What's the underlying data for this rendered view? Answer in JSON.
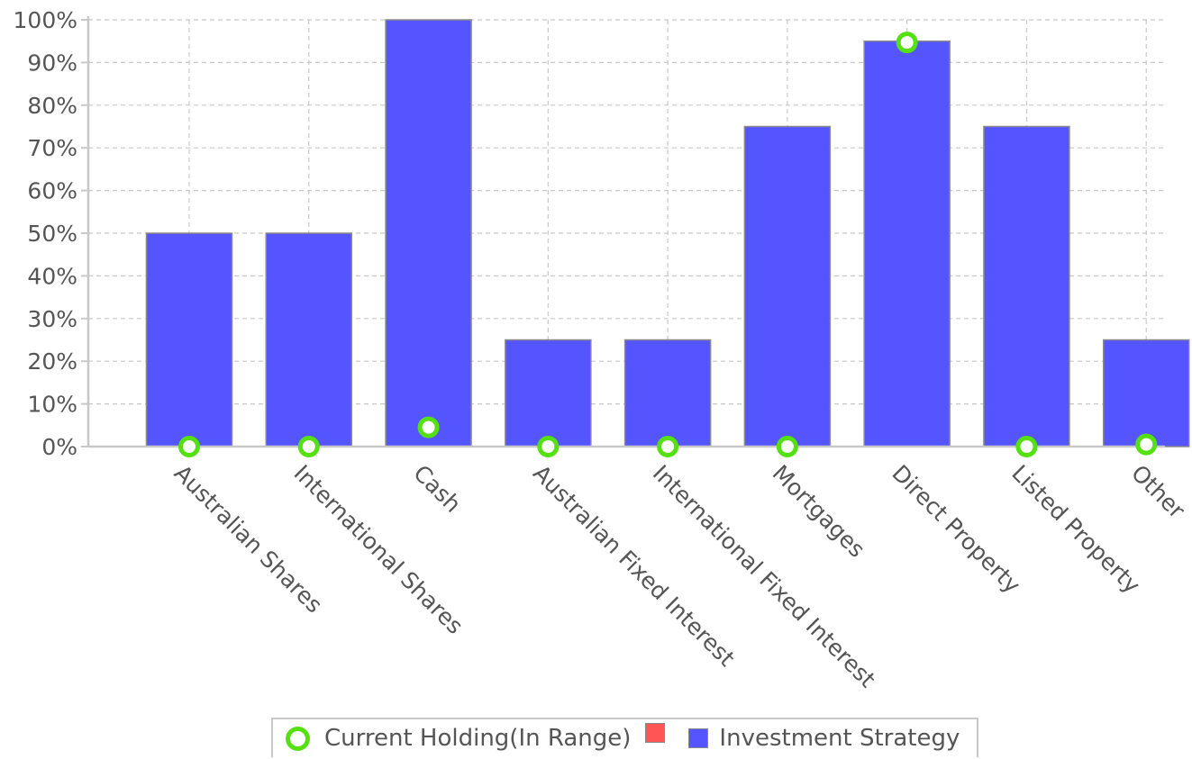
{
  "chart_data": {
    "type": "bar",
    "categories": [
      "Australian Shares",
      "International Shares",
      "Cash",
      "Australian Fixed Interest",
      "International Fixed Interest",
      "Mortgages",
      "Direct Property",
      "Listed Property",
      "Other"
    ],
    "series": [
      {
        "name": "Investment Strategy",
        "kind": "bar",
        "color": "#5555ff",
        "values": [
          50,
          50,
          100,
          25,
          25,
          75,
          95,
          75,
          25
        ]
      },
      {
        "name": "Current Holding(In Range)",
        "kind": "marker",
        "color": "#55e011",
        "values": [
          0,
          0,
          4.5,
          0,
          0,
          0,
          94.7,
          0,
          0.5
        ]
      }
    ],
    "out_of_range_color": "#ff5555",
    "yticks": [
      "0%",
      "10%",
      "20%",
      "30%",
      "40%",
      "50%",
      "60%",
      "70%",
      "80%",
      "90%",
      "100%"
    ],
    "ylim": [
      0,
      100
    ],
    "y_unit": "%",
    "grid": true,
    "legend_position": "bottom"
  },
  "legend": {
    "holding_label": "Current Holding(In Range)",
    "strategy_label": "Investment Strategy"
  },
  "colors": {
    "bar_fill": "#5555ff",
    "marker_stroke": "#55e011",
    "out_of_range": "#ff5555",
    "text": "#555555",
    "grid": "#c8c8c8"
  }
}
